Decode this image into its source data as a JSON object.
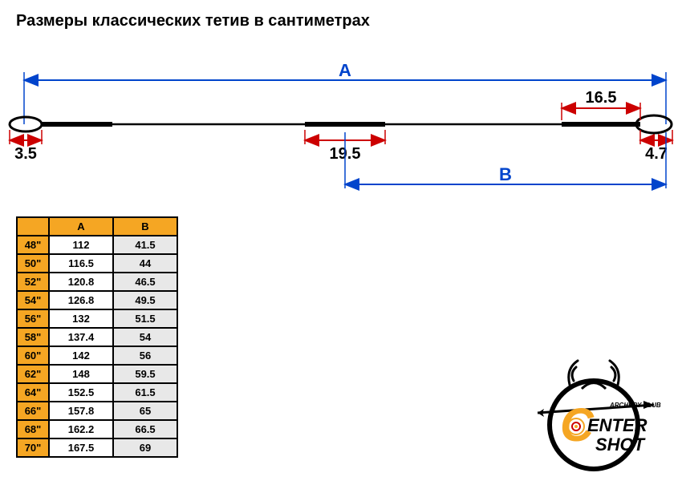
{
  "title": "Размеры классических тетив в сантиметрах",
  "diagram": {
    "label_A": "A",
    "label_B": "B",
    "dim_left_loop": "3.5",
    "dim_center": "19.5",
    "dim_right_top": "16.5",
    "dim_right_loop": "4.7",
    "colors": {
      "arrow": "#0044cc",
      "dim_line": "#cc0000",
      "string": "#000000",
      "label_text": "#0044cc"
    }
  },
  "table": {
    "header_empty": "",
    "header_A": "A",
    "header_B": "B",
    "rows": [
      {
        "size": "48\"",
        "a": "112",
        "b": "41.5"
      },
      {
        "size": "50\"",
        "a": "116.5",
        "b": "44"
      },
      {
        "size": "52\"",
        "a": "120.8",
        "b": "46.5"
      },
      {
        "size": "54\"",
        "a": "126.8",
        "b": "49.5"
      },
      {
        "size": "56\"",
        "a": "132",
        "b": "51.5"
      },
      {
        "size": "58\"",
        "a": "137.4",
        "b": "54"
      },
      {
        "size": "60\"",
        "a": "142",
        "b": "56"
      },
      {
        "size": "62\"",
        "a": "148",
        "b": "59.5"
      },
      {
        "size": "64\"",
        "a": "152.5",
        "b": "61.5"
      },
      {
        "size": "66\"",
        "a": "157.8",
        "b": "65"
      },
      {
        "size": "68\"",
        "a": "162.2",
        "b": "66.5"
      },
      {
        "size": "70\"",
        "a": "167.5",
        "b": "69"
      }
    ],
    "colors": {
      "header_bg": "#f5a623",
      "col_b_bg": "#e8e8e8",
      "border": "#000000"
    }
  },
  "logo": {
    "line1": "ARCHERY CLUB",
    "line2_top": "ENTER",
    "line2_bottom": "SHOT",
    "colors": {
      "outline": "#000000",
      "accent": "#f5a623",
      "c_color": "#f5a623"
    }
  }
}
